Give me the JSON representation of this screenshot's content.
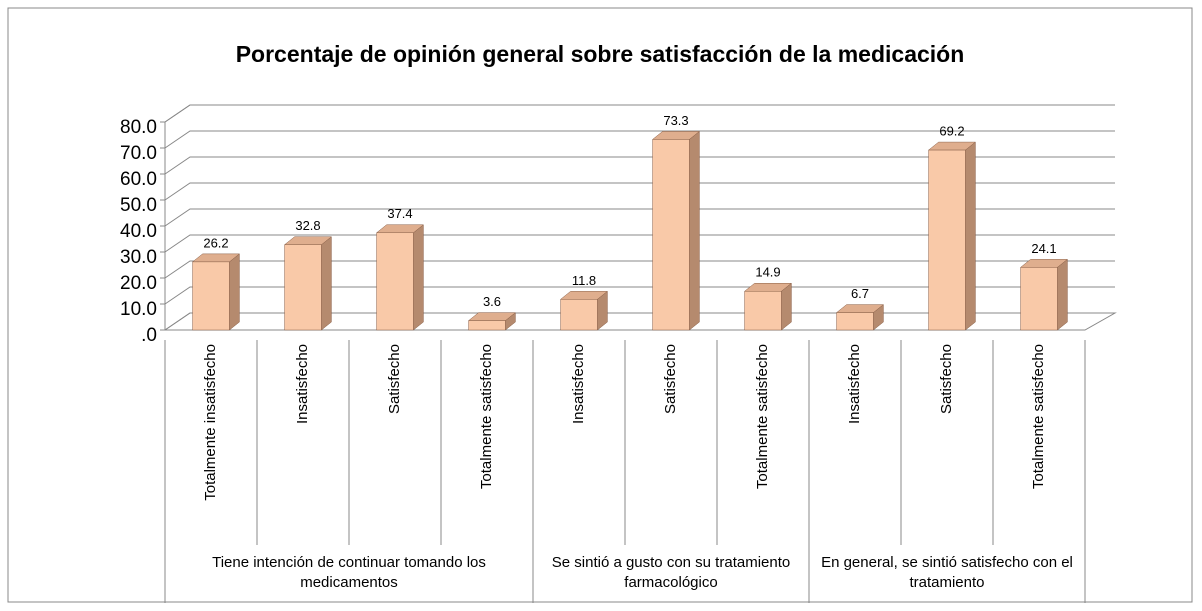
{
  "chart_data": {
    "type": "bar3d",
    "title": "Porcentaje de opinión general sobre satisfacción de la medicación",
    "groups": [
      {
        "label": "Tiene intención de continuar tomando los medicamentos",
        "categories": [
          "Totalmente insatisfecho",
          "Insatisfecho",
          "Satisfecho",
          "Totalmente satisfecho"
        ],
        "values": [
          26.2,
          32.8,
          37.4,
          3.6
        ]
      },
      {
        "label": "Se sintió a gusto con su tratamiento farmacológico",
        "categories": [
          "Insatisfecho",
          "Satisfecho",
          "Totalmente satisfecho"
        ],
        "values": [
          11.8,
          73.3,
          14.9
        ]
      },
      {
        "label": "En general, se sintió satisfecho con el tratamiento",
        "categories": [
          "Insatisfecho",
          "Satisfecho",
          "Totalmente satisfecho"
        ],
        "values": [
          6.7,
          69.2,
          24.1
        ]
      }
    ],
    "color": "#f9c9a8",
    "ylim": [
      0,
      80
    ],
    "yticks": [
      {
        "value": 0,
        "label": ".0"
      },
      {
        "value": 10,
        "label": "10.0"
      },
      {
        "value": 20,
        "label": "20.0"
      },
      {
        "value": 30,
        "label": "30.0"
      },
      {
        "value": 40,
        "label": "40.0"
      },
      {
        "value": 50,
        "label": "50.0"
      },
      {
        "value": 60,
        "label": "60.0"
      },
      {
        "value": 70,
        "label": "70.0"
      },
      {
        "value": 80,
        "label": "80.0"
      }
    ],
    "grid": true
  }
}
